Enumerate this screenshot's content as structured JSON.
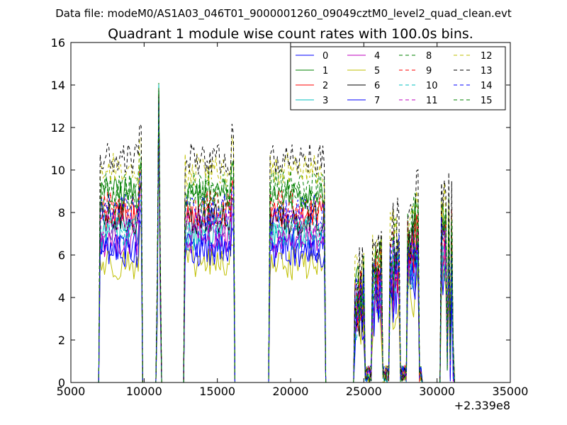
{
  "chart_data": {
    "type": "line",
    "suptitle": "Data file: modeM0/AS1A03_046T01_9000001260_09049cztM0_level2_quad_clean.evt",
    "title": "Quadrant 1 module wise count rates with 100.0s bins.",
    "xlabel": "",
    "ylabel": "",
    "xlim": [
      5000,
      35000
    ],
    "ylim": [
      0,
      16
    ],
    "x_offset_label": "+2.339e8",
    "x_ticks": [
      5000,
      10000,
      15000,
      20000,
      25000,
      30000,
      35000
    ],
    "x_tick_labels": [
      "5000",
      "10000",
      "15000",
      "20000",
      "25000",
      "30000",
      "35000"
    ],
    "y_ticks": [
      0,
      2,
      4,
      6,
      8,
      10,
      12,
      14,
      16
    ],
    "y_tick_labels": [
      "0",
      "2",
      "4",
      "6",
      "8",
      "10",
      "12",
      "14",
      "16"
    ],
    "grid": false,
    "legend_position": "top-right",
    "legend_columns": 4,
    "bin_size_s": 100,
    "segments": [
      {
        "start": 7000,
        "end": 9800,
        "kind": "plateau"
      },
      {
        "start": 10900,
        "end": 11100,
        "kind": "spike",
        "peak": 13.6
      },
      {
        "start": 12800,
        "end": 16100,
        "kind": "plateau"
      },
      {
        "start": 18600,
        "end": 22300,
        "kind": "plateau"
      },
      {
        "start": 24400,
        "end": 28900,
        "kind": "intermittent"
      },
      {
        "start": 30300,
        "end": 31100,
        "kind": "intermittent"
      }
    ],
    "series": [
      {
        "name": "0",
        "color": "#0000ff",
        "style": "solid",
        "level": 6.5
      },
      {
        "name": "1",
        "color": "#008000",
        "style": "solid",
        "level": 8.9
      },
      {
        "name": "2",
        "color": "#ff0000",
        "style": "solid",
        "level": 7.8
      },
      {
        "name": "3",
        "color": "#00bfbf",
        "style": "solid",
        "level": 7.0
      },
      {
        "name": "4",
        "color": "#bf00bf",
        "style": "solid",
        "level": 6.7
      },
      {
        "name": "5",
        "color": "#bfbf00",
        "style": "solid",
        "level": 5.6
      },
      {
        "name": "6",
        "color": "#000000",
        "style": "solid",
        "level": 7.7
      },
      {
        "name": "7",
        "color": "#0000ff",
        "style": "solid",
        "level": 6.2
      },
      {
        "name": "8",
        "color": "#008000",
        "style": "dashed",
        "level": 9.2
      },
      {
        "name": "9",
        "color": "#ff0000",
        "style": "dashed",
        "level": 8.3
      },
      {
        "name": "10",
        "color": "#00bfbf",
        "style": "dashed",
        "level": 7.2
      },
      {
        "name": "11",
        "color": "#bf00bf",
        "style": "dashed",
        "level": 7.4
      },
      {
        "name": "12",
        "color": "#bfbf00",
        "style": "dashed",
        "level": 10.0
      },
      {
        "name": "13",
        "color": "#000000",
        "style": "dashed",
        "level": 10.5
      },
      {
        "name": "14",
        "color": "#0000ff",
        "style": "dashed",
        "level": 8.1
      },
      {
        "name": "15",
        "color": "#008000",
        "style": "dashed",
        "level": 8.6
      }
    ]
  }
}
